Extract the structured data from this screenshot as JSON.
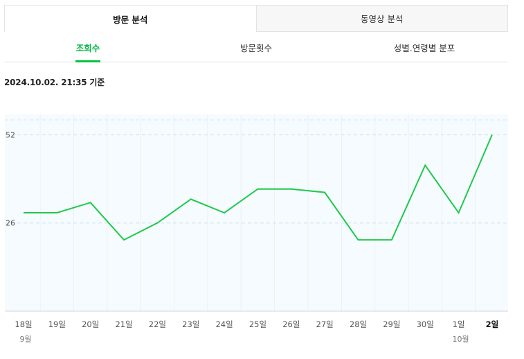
{
  "tabs_top": [
    {
      "label": "방문 분석",
      "active": true
    },
    {
      "label": "동영상 분석",
      "active": false
    }
  ],
  "tabs_sub": [
    {
      "label": "조회수",
      "active": true
    },
    {
      "label": "방문횟수",
      "active": false
    },
    {
      "label": "성별.연령별 분포",
      "active": false
    }
  ],
  "timestamp": "2024.10.02. 21:35 기준",
  "colors": {
    "line": "#1ec94a",
    "accent": "#00b843",
    "plot_bg": "#f5fbff"
  },
  "chart_data": {
    "type": "line",
    "categories": [
      "18일",
      "19일",
      "20일",
      "21일",
      "22일",
      "23일",
      "24일",
      "25일",
      "26일",
      "27일",
      "28일",
      "29일",
      "30일",
      "1일",
      "2일"
    ],
    "month_labels": [
      {
        "index": 0,
        "label": "9월"
      },
      {
        "index": 13,
        "label": "10월"
      }
    ],
    "highlight_index": 14,
    "series": [
      {
        "values": [
          29,
          29,
          32,
          21,
          26,
          33,
          29,
          36,
          36,
          35,
          21,
          21,
          43,
          29,
          52
        ]
      }
    ],
    "yticks": [
      26,
      52
    ],
    "ylim": [
      0,
      58
    ],
    "title": "",
    "xlabel": "",
    "ylabel": "",
    "grid": true
  }
}
